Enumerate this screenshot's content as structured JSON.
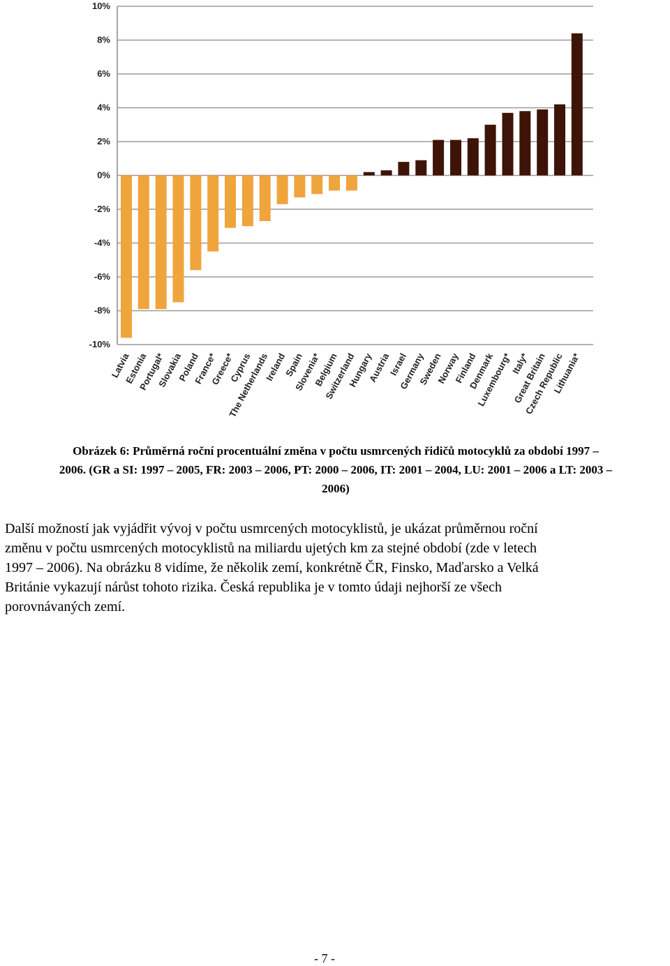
{
  "chart_data": {
    "type": "bar",
    "categories": [
      "Latvia",
      "Estonia",
      "Portugal*",
      "Slovakia",
      "Poland",
      "France*",
      "Greece*",
      "Cyprus",
      "The Netherlands",
      "Ireland",
      "Spain",
      "Slovenia*",
      "Belgium",
      "Switzerland",
      "Hungary",
      "Austria",
      "Israel",
      "Germany",
      "Sweden",
      "Norway",
      "Finland",
      "Denmark",
      "Luxembourg*",
      "Italy*",
      "Great Britain",
      "Czech Republic",
      "Lithuania*"
    ],
    "values": [
      -9.6,
      -7.9,
      -7.9,
      -7.5,
      -5.6,
      -4.5,
      -3.1,
      -3.0,
      -2.7,
      -1.7,
      -1.3,
      -1.1,
      -0.9,
      -0.9,
      0.2,
      0.3,
      0.8,
      0.9,
      2.1,
      2.1,
      2.2,
      3.0,
      3.7,
      3.8,
      3.9,
      4.2,
      8.4
    ],
    "ylim": [
      -10,
      10
    ],
    "yticks": [
      10,
      8,
      6,
      4,
      2,
      0,
      -2,
      -4,
      -6,
      -8,
      -10
    ],
    "ytick_labels": [
      "10%",
      "8%",
      "6%",
      "4%",
      "2%",
      "0%",
      "-2%",
      "-4%",
      "-6%",
      "-8%",
      "-10%"
    ],
    "grid": true,
    "colors": {
      "negative": "#f0a43c",
      "positive": "#3e1408"
    }
  },
  "caption": {
    "line1": "Obrázek 6:  Průměrná roční procentuální změna v počtu usmrcených řidičů motocyklů za období 1997 –",
    "line2": "2006. (GR a SI: 1997 – 2005, FR: 2003 – 2006, PT: 2000 – 2006, IT: 2001 – 2004, LU: 2001 – 2006 a LT: 2003 –",
    "line3": "2006)"
  },
  "paragraph": {
    "line1": "Další možností jak vyjádřit vývoj v počtu usmrcených motocyklistů, je ukázat průměrnou roční",
    "line2": "změnu v počtu usmrcených motocyklistů na miliardu ujetých km za stejné období (zde v letech",
    "line3": "1997 – 2006). Na obrázku 8 vidíme, že několik zemí, konkrétně ČR, Finsko, Maďarsko a Velká",
    "line4": "Británie vykazují nárůst tohoto rizika. Česká republika je v tomto údaji nejhorší ze všech",
    "line5": "porovnávaných zemí."
  },
  "page_number": "- 7 -"
}
